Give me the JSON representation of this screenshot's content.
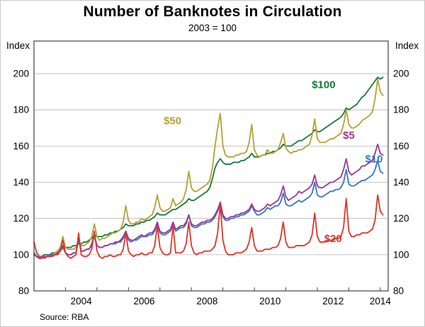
{
  "page": {
    "title": "Number of Banknotes in Circulation",
    "subtitle": "2003 = 100",
    "index_label_left": "Index",
    "index_label_right": "Index",
    "source": "Source: RBA"
  },
  "chart_data": {
    "type": "line",
    "title": "Number of Banknotes in Circulation",
    "subtitle": "2003 = 100",
    "ylabel_left": "Index",
    "ylabel_right": "Index",
    "source": "Source: RBA",
    "x_unit": "monthly",
    "x_start_year": 2003,
    "x_range": [
      2003.0,
      2014.25
    ],
    "y_range": [
      80,
      218
    ],
    "y_ticks": [
      80,
      100,
      120,
      140,
      160,
      180,
      200
    ],
    "x_year_ticks": [
      2003,
      2004,
      2005,
      2006,
      2007,
      2008,
      2009,
      2010,
      2011,
      2012,
      2013,
      2014
    ],
    "x_tick_labels": [
      {
        "label": "2004",
        "x": 2004.5
      },
      {
        "label": "2006",
        "x": 2006.5
      },
      {
        "label": "2008",
        "x": 2008.5
      },
      {
        "label": "2010",
        "x": 2010.5
      },
      {
        "label": "2012",
        "x": 2012.5
      },
      {
        "label": "2014",
        "x": 2014.0
      }
    ],
    "grid": "horizontal",
    "grid_color": "#b5b5b5",
    "border_color": "#444444",
    "legend": "inline-labels",
    "series": [
      {
        "name": "$100",
        "color": "#17793b",
        "label_x": 2012.2,
        "label_y": 192,
        "values": [
          100,
          99,
          99,
          99,
          100,
          100,
          100,
          101,
          101,
          102,
          103,
          104,
          104,
          104,
          104,
          105,
          105,
          106,
          106,
          107,
          107,
          108,
          109,
          111,
          110,
          110,
          110,
          111,
          111,
          112,
          112,
          113,
          113,
          114,
          115,
          117,
          116,
          116,
          116,
          117,
          117,
          118,
          118,
          119,
          119,
          120,
          121,
          123,
          122,
          122,
          122,
          123,
          124,
          125,
          125,
          126,
          127,
          128,
          129,
          131,
          130,
          130,
          131,
          132,
          133,
          134,
          135,
          137,
          142,
          148,
          151,
          153,
          151,
          150,
          150,
          150,
          151,
          151,
          151,
          152,
          152,
          153,
          154,
          156,
          154,
          154,
          154,
          155,
          155,
          156,
          156,
          157,
          157,
          158,
          159,
          161,
          160,
          160,
          160,
          161,
          162,
          163,
          163,
          164,
          165,
          166,
          167,
          169,
          168,
          168,
          169,
          170,
          171,
          172,
          173,
          174,
          175,
          176,
          178,
          181,
          180,
          181,
          182,
          183,
          185,
          187,
          188,
          190,
          192,
          194,
          196,
          198,
          197,
          198
        ]
      },
      {
        "name": "$50",
        "color": "#b3a233",
        "label_x": 2007.4,
        "label_y": 172,
        "values": [
          101,
          99,
          98,
          98,
          99,
          99,
          100,
          100,
          101,
          102,
          104,
          110,
          104,
          103,
          103,
          103,
          104,
          108,
          105,
          105,
          106,
          107,
          110,
          117,
          110,
          108,
          109,
          109,
          110,
          111,
          112,
          112,
          113,
          114,
          118,
          127,
          119,
          117,
          117,
          118,
          118,
          120,
          119,
          120,
          121,
          122,
          126,
          133,
          126,
          124,
          124,
          125,
          126,
          131,
          127,
          128,
          129,
          131,
          136,
          146,
          137,
          135,
          135,
          136,
          137,
          138,
          139,
          141,
          148,
          160,
          170,
          178,
          160,
          155,
          154,
          154,
          154,
          155,
          155,
          156,
          156,
          157,
          162,
          172,
          158,
          155,
          154,
          155,
          155,
          158,
          156,
          156,
          157,
          158,
          162,
          167,
          159,
          157,
          156,
          157,
          157,
          158,
          158,
          159,
          160,
          161,
          166,
          175,
          164,
          162,
          162,
          162,
          163,
          164,
          164,
          165,
          166,
          167,
          172,
          180,
          172,
          170,
          170,
          171,
          172,
          174,
          175,
          176,
          177,
          179,
          186,
          197,
          190,
          188
        ]
      },
      {
        "name": "$10",
        "color": "#3577bf",
        "label_x": 2013.8,
        "label_y": 151,
        "values": [
          101,
          99,
          98,
          99,
          99,
          99,
          100,
          100,
          100,
          101,
          102,
          104,
          101,
          100,
          100,
          101,
          101,
          108,
          102,
          102,
          103,
          103,
          105,
          110,
          105,
          104,
          104,
          105,
          105,
          106,
          106,
          106,
          107,
          107,
          109,
          112,
          108,
          107,
          108,
          108,
          109,
          110,
          110,
          110,
          111,
          111,
          113,
          117,
          112,
          111,
          111,
          112,
          113,
          117,
          113,
          114,
          115,
          115,
          117,
          122,
          116,
          115,
          115,
          116,
          117,
          117,
          118,
          118,
          119,
          121,
          124,
          129,
          121,
          119,
          119,
          120,
          120,
          121,
          121,
          122,
          122,
          123,
          124,
          127,
          124,
          122,
          122,
          123,
          124,
          126,
          125,
          126,
          127,
          127,
          129,
          134,
          128,
          127,
          127,
          128,
          129,
          130,
          129,
          130,
          131,
          132,
          134,
          140,
          133,
          132,
          132,
          133,
          134,
          135,
          135,
          136,
          136,
          137,
          140,
          147,
          139,
          138,
          138,
          139,
          140,
          141,
          141,
          142,
          143,
          144,
          147,
          152,
          146,
          145
        ]
      },
      {
        "name": "$5",
        "color": "#9b3596",
        "label_x": 2013.0,
        "label_y": 164,
        "values": [
          100,
          99,
          98,
          98,
          99,
          99,
          99,
          100,
          100,
          101,
          102,
          105,
          101,
          100,
          100,
          101,
          101,
          110,
          102,
          102,
          103,
          103,
          106,
          111,
          105,
          104,
          104,
          105,
          105,
          106,
          106,
          107,
          107,
          108,
          110,
          113,
          109,
          108,
          108,
          109,
          110,
          111,
          110,
          111,
          112,
          112,
          114,
          118,
          113,
          112,
          112,
          113,
          114,
          118,
          114,
          115,
          116,
          116,
          118,
          122,
          117,
          116,
          116,
          117,
          118,
          118,
          119,
          119,
          120,
          122,
          125,
          129,
          122,
          120,
          120,
          121,
          121,
          122,
          122,
          123,
          123,
          124,
          125,
          128,
          125,
          124,
          124,
          125,
          126,
          128,
          127,
          128,
          129,
          130,
          133,
          138,
          132,
          130,
          131,
          132,
          133,
          135,
          134,
          135,
          136,
          137,
          139,
          144,
          138,
          137,
          137,
          138,
          139,
          140,
          140,
          141,
          142,
          143,
          147,
          153,
          146,
          144,
          145,
          146,
          147,
          149,
          149,
          150,
          151,
          152,
          156,
          161,
          156,
          155
        ]
      },
      {
        "name": "$20",
        "color": "#df3428",
        "label_x": 2012.5,
        "label_y": 107,
        "values": [
          107,
          101,
          99,
          99,
          98,
          99,
          99,
          99,
          100,
          100,
          102,
          108,
          101,
          99,
          98,
          99,
          100,
          112,
          100,
          99,
          99,
          100,
          103,
          113,
          102,
          99,
          98,
          99,
          99,
          100,
          99,
          99,
          100,
          100,
          103,
          112,
          102,
          100,
          99,
          100,
          100,
          101,
          100,
          100,
          101,
          101,
          105,
          116,
          104,
          101,
          100,
          100,
          101,
          116,
          101,
          101,
          101,
          102,
          106,
          118,
          105,
          101,
          100,
          101,
          101,
          102,
          102,
          102,
          103,
          105,
          112,
          128,
          108,
          102,
          100,
          100,
          100,
          101,
          101,
          101,
          102,
          103,
          107,
          115,
          105,
          102,
          102,
          102,
          103,
          103,
          103,
          104,
          104,
          105,
          109,
          118,
          107,
          104,
          104,
          104,
          105,
          105,
          105,
          105,
          106,
          107,
          111,
          123,
          110,
          107,
          107,
          107,
          108,
          108,
          108,
          109,
          109,
          110,
          115,
          131,
          113,
          110,
          110,
          111,
          111,
          112,
          112,
          112,
          113,
          114,
          119,
          133,
          124,
          122
        ]
      }
    ]
  }
}
